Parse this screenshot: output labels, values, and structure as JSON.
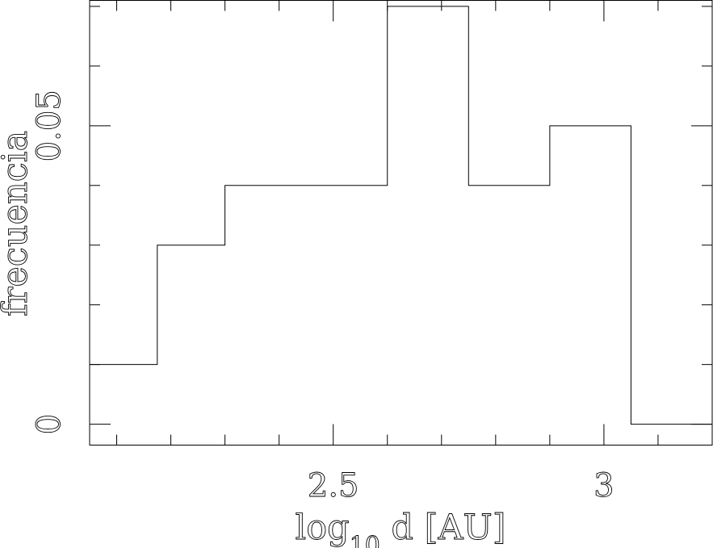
{
  "chart_data": {
    "type": "bar",
    "style": "step-histogram",
    "xlabel": "log",
    "xlabel_subscript": "10",
    "xlabel_rest": " d [AU]",
    "ylabel": "frecuencia",
    "xlim": [
      2.05,
      3.2
    ],
    "ylim": [
      -0.0035,
      0.071
    ],
    "x_ticks_major": [
      2.5,
      3
    ],
    "x_tick_labels": [
      "2.5",
      "3"
    ],
    "x_ticks_minor_step": 0.1,
    "y_ticks_major": [
      0,
      0.05
    ],
    "y_tick_labels": [
      "0",
      "0.05"
    ],
    "y_ticks_minor_step": 0.01,
    "bins": [
      {
        "x0": 2.05,
        "x1": 2.175,
        "value": 0.01
      },
      {
        "x0": 2.175,
        "x1": 2.3,
        "value": 0.03
      },
      {
        "x0": 2.3,
        "x1": 2.45,
        "value": 0.04
      },
      {
        "x0": 2.45,
        "x1": 2.6,
        "value": 0.04
      },
      {
        "x0": 2.6,
        "x1": 2.75,
        "value": 0.07
      },
      {
        "x0": 2.75,
        "x1": 2.9,
        "value": 0.04
      },
      {
        "x0": 2.9,
        "x1": 3.05,
        "value": 0.05
      },
      {
        "x0": 3.05,
        "x1": 3.2,
        "value": 0.0
      }
    ]
  }
}
